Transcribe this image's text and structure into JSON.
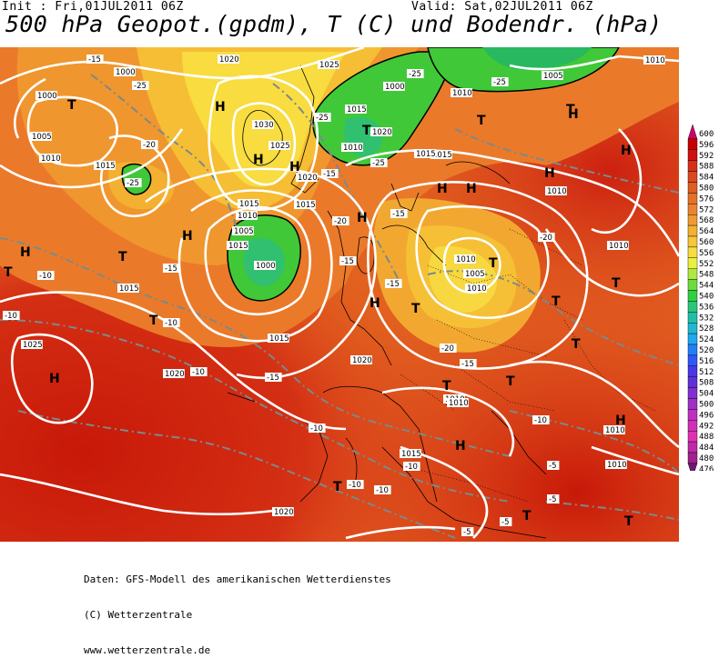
{
  "header": {
    "init": "Init : Fri,01JUL2011 06Z",
    "valid": "Valid: Sat,02JUL2011 06Z",
    "title": "500 hPa Geopot.(gpdm), T (C) und Bodendr. (hPa)"
  },
  "legend": {
    "values": [
      600,
      596,
      592,
      588,
      584,
      580,
      576,
      572,
      568,
      564,
      560,
      556,
      552,
      548,
      544,
      540,
      536,
      532,
      528,
      524,
      520,
      516,
      512,
      508,
      504,
      500,
      496,
      492,
      488,
      484,
      480,
      476
    ],
    "colors": [
      "#d0006a",
      "#c80000",
      "#d01010",
      "#d83018",
      "#dc4820",
      "#e05c20",
      "#e67028",
      "#ec8230",
      "#f09a30",
      "#f4b030",
      "#f8c638",
      "#f8dc40",
      "#eaf040",
      "#b0e840",
      "#6cdc3c",
      "#30d040",
      "#28c878",
      "#20c0a8",
      "#20b8d0",
      "#20a8f0",
      "#2080f8",
      "#3058f8",
      "#4838e8",
      "#6030d8",
      "#8030d0",
      "#a030c8",
      "#c030c0",
      "#d030b8",
      "#e030b0",
      "#c028a8",
      "#a02090",
      "#701870"
    ]
  },
  "map": {
    "pressure_labels": [
      "1020",
      "1025",
      "1000",
      "1000",
      "1005",
      "1010",
      "1015",
      "1030",
      "1020",
      "1015",
      "1015",
      "1010",
      "1010",
      "1005",
      "1000",
      "1020",
      "1025",
      "1015",
      "1010",
      "1015",
      "1010",
      "1005",
      "1000",
      "1005",
      "1010",
      "1015",
      "1015",
      "1025",
      "1010",
      "1015",
      "1020",
      "1015",
      "1010",
      "1020",
      "1020",
      "1015",
      "1010",
      "1010",
      "1010",
      "1010",
      "1010"
    ],
    "temp_labels": [
      "-15",
      "-25",
      "-20",
      "-25",
      "-25",
      "-15",
      "-25",
      "-25",
      "-25",
      "-20",
      "-15",
      "-15",
      "-15",
      "-10",
      "-10",
      "-10",
      "-15",
      "-10",
      "-15",
      "-20",
      "-15",
      "-20",
      "-10",
      "-10",
      "-10",
      "-10",
      "-5",
      "-5",
      "-5",
      "-5",
      "-10"
    ],
    "pressure_systems": [
      "T",
      "T",
      "H",
      "H",
      "H",
      "H",
      "T",
      "H",
      "T",
      "H",
      "T",
      "H",
      "T",
      "T",
      "H",
      "H",
      "T",
      "H",
      "H",
      "T",
      "T",
      "T",
      "T",
      "H",
      "H",
      "T",
      "T",
      "H",
      "T",
      "T",
      "T",
      "H"
    ]
  },
  "footer": {
    "line1": "Daten: GFS-Modell des amerikanischen Wetterdienstes",
    "line2": "(C) Wetterzentrale",
    "line3": "www.wetterzentrale.de"
  }
}
